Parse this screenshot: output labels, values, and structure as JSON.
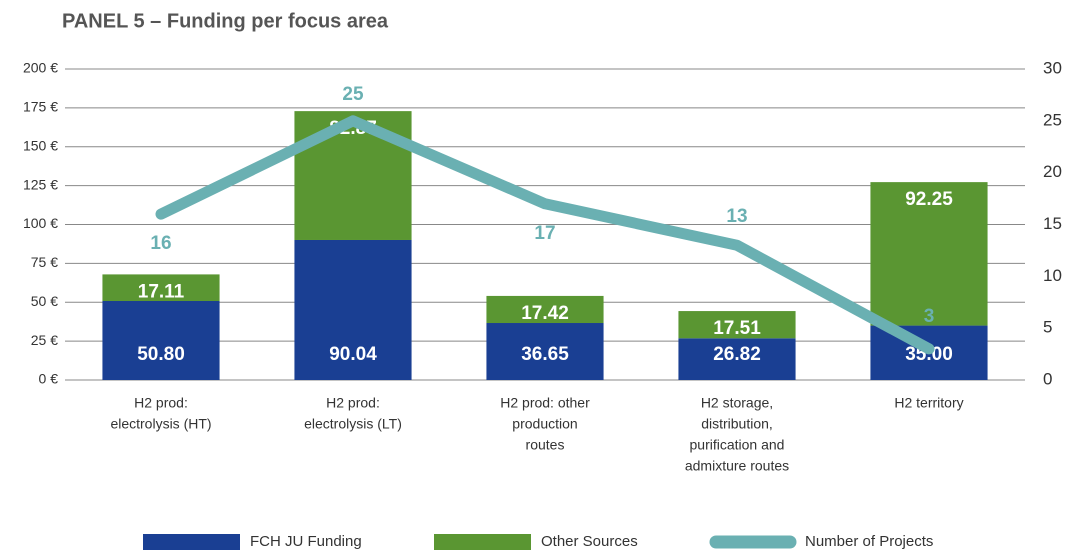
{
  "chart_data": {
    "type": "bar",
    "title": "PANEL 5 – Funding per focus area",
    "categories": [
      [
        "H2 prod:",
        "electrolysis (HT)"
      ],
      [
        "H2 prod:",
        "electrolysis (LT)"
      ],
      [
        "H2 prod: other",
        "production",
        "routes"
      ],
      [
        "H2 storage,",
        "distribution,",
        "purification and",
        "admixture routes"
      ],
      [
        "H2 territory"
      ]
    ],
    "series": [
      {
        "name": "FCH JU Funding",
        "color": "#1a3f93",
        "values": [
          50.8,
          90.04,
          36.65,
          26.82,
          35
        ],
        "value_labels": [
          "50.80",
          "90.04",
          "36.65",
          "26.82",
          "35.00"
        ]
      },
      {
        "name": "Other Sources",
        "color": "#5a9632",
        "values": [
          17.11,
          82.87,
          17.42,
          17.51,
          92.25
        ],
        "value_labels": [
          "17.11",
          "82.87",
          "17.42",
          "17.51",
          "92.25"
        ]
      },
      {
        "name": "Number of Projects",
        "color": "#6ab0b2",
        "type": "line",
        "axis": "y2",
        "values": [
          16,
          25,
          17,
          13,
          3
        ]
      }
    ],
    "ylim": [
      0,
      200
    ],
    "yticks": [
      {
        "value": 0,
        "label": "0 €"
      },
      {
        "value": 25,
        "label": "25 €"
      },
      {
        "value": 50,
        "label": "50 €"
      },
      {
        "value": 75,
        "label": "75 €"
      },
      {
        "value": 100,
        "label": "100 €"
      },
      {
        "value": 125,
        "label": "125 €"
      },
      {
        "value": 150,
        "label": "150 €"
      },
      {
        "value": 175,
        "label": "175 €"
      },
      {
        "value": 200,
        "label": "200 €"
      }
    ],
    "y2lim": [
      0,
      30
    ],
    "y2ticks": [
      0,
      5,
      10,
      15,
      20,
      25,
      30
    ],
    "grid": true,
    "legend": "bottom"
  }
}
